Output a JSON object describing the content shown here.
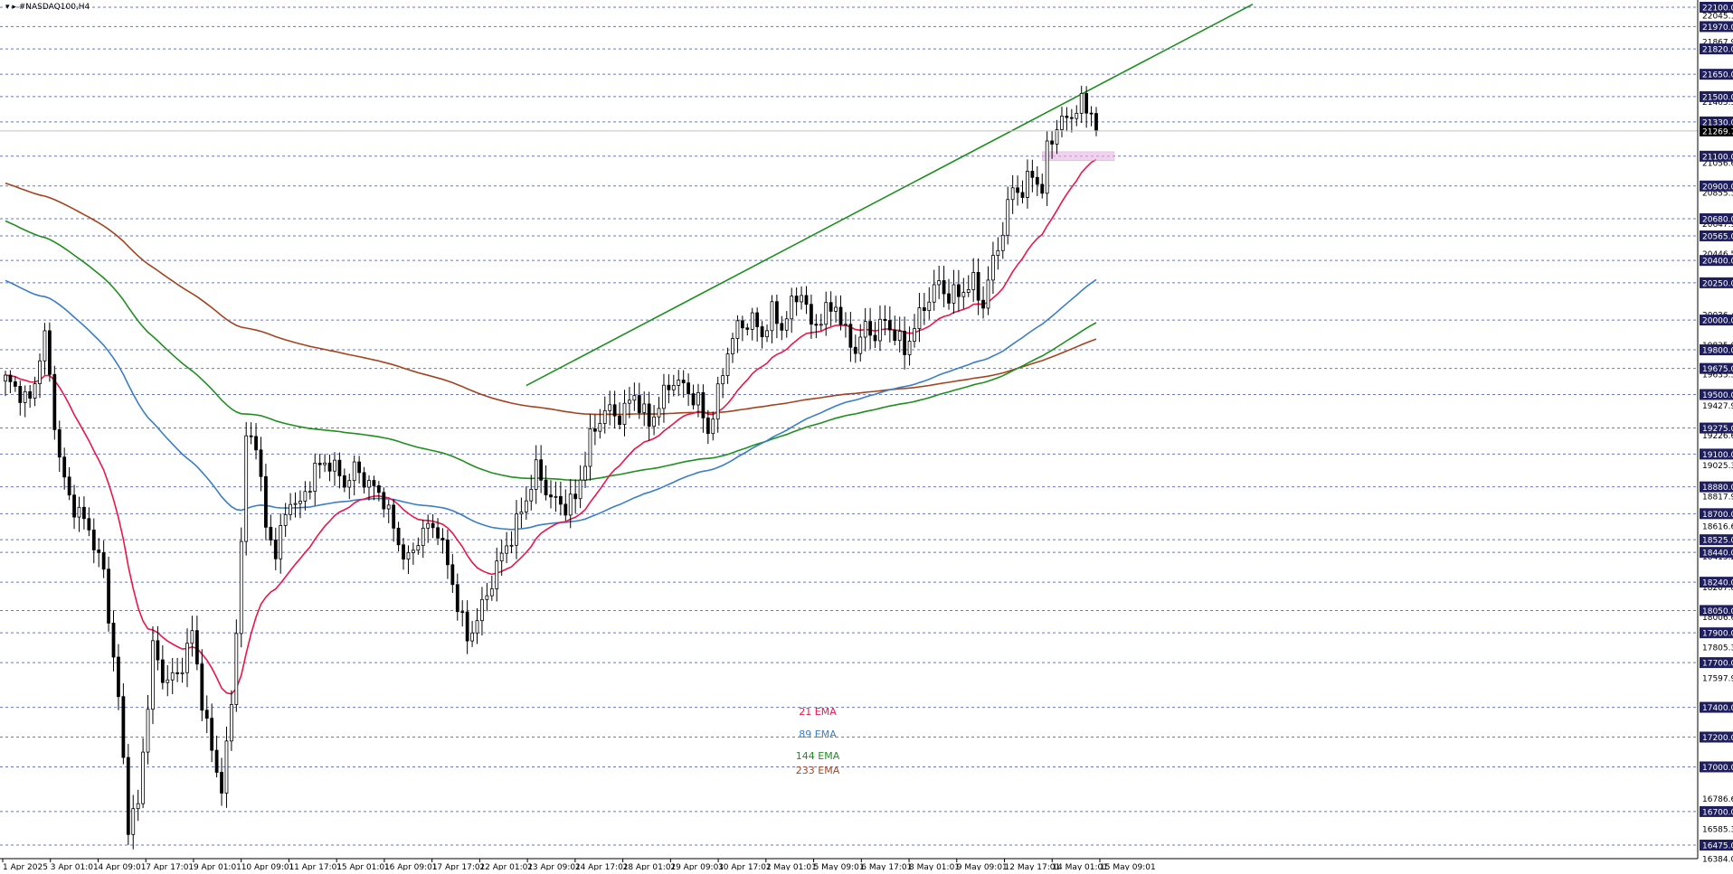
{
  "symbol_label": "▾ ▸ #NASDAQ100,H4",
  "chart_data": {
    "type": "candlestick",
    "symbol": "#NASDAQ100",
    "timeframe": "H4",
    "current_price": "21269.74",
    "y_range": [
      16384.01,
      22100.0
    ],
    "grid": true,
    "colors": {
      "bull_body": "#ffffff",
      "bear_body": "#000000",
      "wick": "#000000",
      "ema21": "#e8174a",
      "ema89": "#3a7ec4",
      "ema144": "#1f8f1f",
      "ema233": "#a4441f",
      "trendline": "#1f8f1f",
      "zone": "#e8b4e0",
      "price_tag_bg": "#1f1f5f",
      "current_tag_bg": "#000000"
    },
    "level_labels": [
      "22100.00",
      "21970.00",
      "21820.00",
      "21650.00",
      "21500.00",
      "21330.00",
      "21100.00",
      "20900.00",
      "20680.00",
      "20565.00",
      "20400.00",
      "20250.00",
      "20000.00",
      "19800.00",
      "19675.00",
      "19500.00",
      "19275.00",
      "19100.00",
      "18880.00",
      "18700.00",
      "18525.00",
      "18440.00",
      "18240.00",
      "18050.00",
      "17900.00",
      "17700.00",
      "17400.00",
      "17200.00",
      "17000.00",
      "16700.00",
      "16475.00"
    ],
    "axis_tick_labels": [
      "22045.11",
      "21867.91",
      "21465.31",
      "21056.61",
      "20855.31",
      "20647.91",
      "20446.51",
      "20237.81",
      "20036.41",
      "19835.01",
      "19635.31",
      "19427.91",
      "19226.61",
      "19025.31",
      "18817.91",
      "18616.61",
      "18415.21",
      "18207.81",
      "18006.61",
      "17805.31",
      "17597.91",
      "16786.61",
      "16585.31",
      "16384.01"
    ],
    "x_labels": [
      "1 Apr 2025",
      "3 Apr 01:01",
      "4 Apr 09:01",
      "7 Apr 17:01",
      "9 Apr 01:01",
      "10 Apr 09:01",
      "11 Apr 17:01",
      "15 Apr 01:01",
      "16 Apr 09:01",
      "17 Apr 17:01",
      "22 Apr 01:01",
      "23 Apr 09:01",
      "24 Apr 17:01",
      "28 Apr 01:01",
      "29 Apr 09:01",
      "30 Apr 17:01",
      "2 May 01:01",
      "5 May 09:01",
      "6 May 17:01",
      "8 May 01:01",
      "9 May 09:01",
      "12 May 17:01",
      "14 May 01:01",
      "15 May 09:01"
    ],
    "legend": [
      {
        "label": "21 EMA",
        "color": "#e8174a"
      },
      {
        "label": "89 EMA",
        "color": "#3a7ec4"
      },
      {
        "label": "144 EMA",
        "color": "#1f8f1f"
      },
      {
        "label": "233 EMA",
        "color": "#a4441f"
      }
    ],
    "anchors": [
      [
        0,
        19600
      ],
      [
        5,
        19450
      ],
      [
        8,
        19900
      ],
      [
        9,
        19600
      ],
      [
        11,
        19060
      ],
      [
        13,
        18800
      ],
      [
        17,
        18600
      ],
      [
        20,
        18300
      ],
      [
        23,
        17450
      ],
      [
        25,
        16620
      ],
      [
        27,
        16740
      ],
      [
        30,
        17800
      ],
      [
        32,
        17600
      ],
      [
        35,
        17600
      ],
      [
        38,
        17900
      ],
      [
        40,
        17450
      ],
      [
        42,
        17100
      ],
      [
        44,
        16860
      ],
      [
        46,
        17400
      ],
      [
        48,
        18500
      ],
      [
        49,
        19200
      ],
      [
        51,
        19200
      ],
      [
        53,
        18600
      ],
      [
        55,
        18450
      ],
      [
        58,
        18800
      ],
      [
        60,
        18750
      ],
      [
        63,
        19000
      ],
      [
        66,
        19050
      ],
      [
        69,
        18900
      ],
      [
        71,
        19000
      ],
      [
        74,
        18900
      ],
      [
        77,
        18800
      ],
      [
        80,
        18500
      ],
      [
        82,
        18380
      ],
      [
        85,
        18600
      ],
      [
        88,
        18600
      ],
      [
        90,
        18350
      ],
      [
        92,
        18100
      ],
      [
        94,
        17850
      ],
      [
        96,
        18000
      ],
      [
        98,
        18150
      ],
      [
        100,
        18350
      ],
      [
        103,
        18550
      ],
      [
        106,
        18800
      ],
      [
        108,
        19000
      ],
      [
        111,
        18800
      ],
      [
        114,
        18750
      ],
      [
        116,
        18800
      ],
      [
        119,
        19200
      ],
      [
        122,
        19400
      ],
      [
        125,
        19350
      ],
      [
        128,
        19500
      ],
      [
        131,
        19300
      ],
      [
        134,
        19500
      ],
      [
        136,
        19600
      ],
      [
        138,
        19550
      ],
      [
        141,
        19450
      ],
      [
        143,
        19250
      ],
      [
        145,
        19500
      ],
      [
        147,
        19800
      ],
      [
        149,
        19950
      ],
      [
        152,
        20000
      ],
      [
        154,
        19900
      ],
      [
        156,
        20050
      ],
      [
        158,
        19950
      ],
      [
        160,
        20100
      ],
      [
        162,
        20200
      ],
      [
        164,
        19950
      ],
      [
        167,
        20050
      ],
      [
        169,
        20100
      ],
      [
        171,
        19900
      ],
      [
        173,
        19800
      ],
      [
        175,
        19950
      ],
      [
        177,
        19900
      ],
      [
        179,
        20000
      ],
      [
        181,
        19900
      ],
      [
        183,
        19800
      ],
      [
        185,
        19950
      ],
      [
        187,
        20100
      ],
      [
        190,
        20250
      ],
      [
        192,
        20150
      ],
      [
        195,
        20200
      ],
      [
        197,
        20250
      ],
      [
        199,
        20100
      ],
      [
        201,
        20400
      ],
      [
        203,
        20600
      ],
      [
        205,
        20900
      ],
      [
        207,
        20850
      ],
      [
        209,
        21000
      ],
      [
        211,
        20850
      ],
      [
        212,
        21150
      ],
      [
        214,
        21300
      ],
      [
        217,
        21380
      ],
      [
        219,
        21450
      ],
      [
        221,
        21400
      ],
      [
        222,
        21270
      ]
    ]
  }
}
